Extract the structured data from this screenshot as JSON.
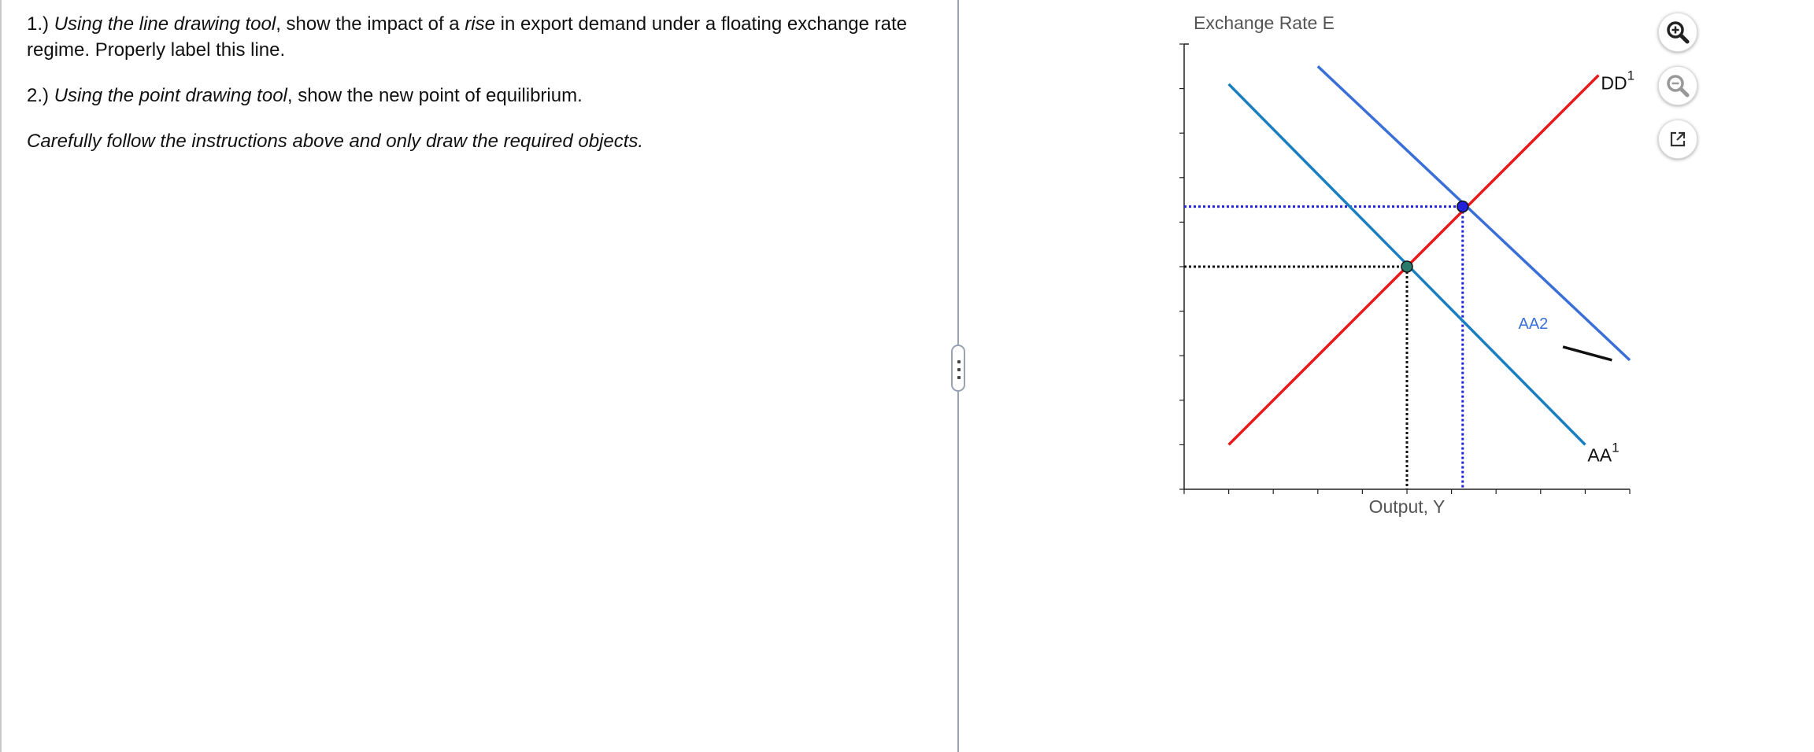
{
  "instructions": {
    "q1_prefix": "1.) ",
    "q1_tool": "Using the line drawing tool",
    "q1_mid": ", show the impact of a ",
    "q1_rise": "rise",
    "q1_rest": " in export demand under a floating exchange rate regime. Properly label this line.",
    "q2_prefix": "2.) ",
    "q2_tool": "Using the point drawing tool",
    "q2_rest": ", show the new point of equilibrium.",
    "note": "Carefully follow the instructions above and only draw the required objects."
  },
  "chart_data": {
    "type": "line",
    "ylabel": "Exchange Rate E",
    "xlabel": "Output, Y",
    "xlim": [
      0,
      10
    ],
    "ylim": [
      0,
      10
    ],
    "x_ticks": [
      1,
      2,
      3,
      4,
      5,
      6,
      7,
      8,
      9,
      10
    ],
    "y_ticks": [
      1,
      2,
      3,
      4,
      5,
      6,
      7,
      8,
      9,
      10
    ],
    "grid": false,
    "series": [
      {
        "name": "DD",
        "label": "DD",
        "label_sup": "1",
        "color": "#e8191b",
        "points": [
          [
            1,
            1
          ],
          [
            9.3,
            9.3
          ]
        ]
      },
      {
        "name": "AA",
        "label": "AA",
        "label_sup": "1",
        "color": "#1a7fc0",
        "points": [
          [
            1,
            9.1
          ],
          [
            9,
            1
          ]
        ]
      },
      {
        "name": "AA2",
        "label": "AA2",
        "color": "#3a6fd8",
        "points": [
          [
            3,
            9.5
          ],
          [
            10,
            2.9
          ]
        ]
      }
    ],
    "equilibria": [
      {
        "name": "original",
        "x": 5,
        "y": 5,
        "color": "#2a7b6b",
        "guide_color": "#111111"
      },
      {
        "name": "new",
        "x": 6.25,
        "y": 6.35,
        "color": "#2222dd",
        "guide_color": "#2222dd"
      }
    ],
    "stray_segment": {
      "color": "#111111",
      "points": [
        [
          8.5,
          3.2
        ],
        [
          9.6,
          2.9
        ]
      ]
    }
  },
  "toolbar": {
    "zoom_in": "zoom-in-icon",
    "zoom_out": "zoom-out-icon",
    "popout": "external-link-icon"
  }
}
